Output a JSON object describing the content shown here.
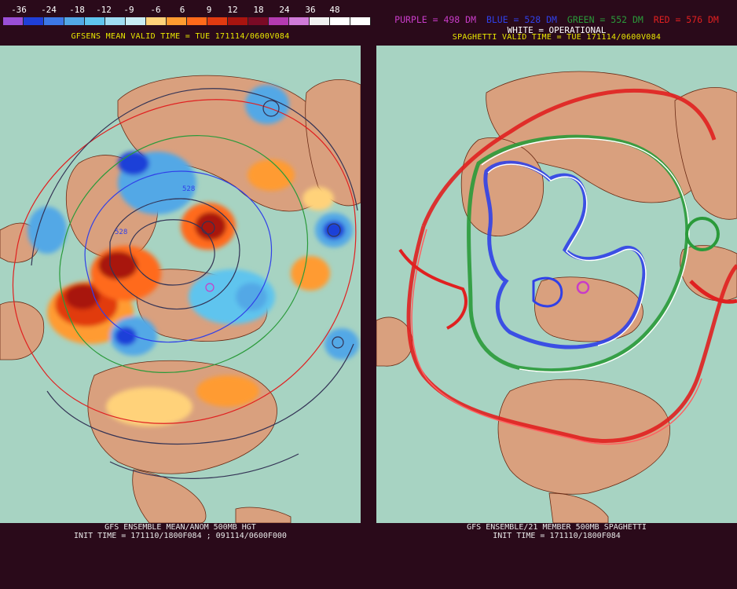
{
  "colorbar": {
    "labels": [
      "-36",
      "-24",
      "-18",
      "-12",
      "-9",
      "-6",
      "6",
      "9",
      "12",
      "18",
      "24",
      "36",
      "48"
    ],
    "colors": [
      "#9a4fd6",
      "#1f3fd8",
      "#3d78e6",
      "#52a8e6",
      "#5fc4ee",
      "#9fdcf2",
      "#c8ecf4",
      "#ffd27a",
      "#ff9b30",
      "#ff6a1a",
      "#e13a10",
      "#a8140f",
      "#7a0a25",
      "#b33bb0",
      "#d07bd8",
      "#f0f0f0",
      "#ffffff",
      "#ffffff"
    ]
  },
  "left_panel": {
    "title": "GFSENS MEAN VALID TIME = TUE 171114/0600V084",
    "footer_line1": "GFS ENSEMBLE MEAN/ANOM 500MB HGT",
    "footer_line2": "INIT TIME = 171110/1800F084 ; 091114/0600F000"
  },
  "right_panel": {
    "legend": [
      {
        "text": "PURPLE = 498 DM",
        "color": "#c83cc8"
      },
      {
        "text": "BLUE = 528 DM",
        "color": "#3040e8"
      },
      {
        "text": "GREEN = 552 DM",
        "color": "#2a9a3a"
      },
      {
        "text": "RED = 576 DM",
        "color": "#e02020"
      }
    ],
    "operational_label": "WHITE = OPERATIONAL",
    "title": "SPAGHETTI VALID TIME = TUE 171114/0600V084",
    "footer_line1": "GFS ENSEMBLE/21 MEMBER 500MB SPAGHETTI",
    "footer_line2": "INIT TIME = 171110/1800F084"
  },
  "contour_labels": [
    "528",
    "528"
  ],
  "colors": {
    "ocean": "#a7d3c2",
    "land": "#d9a07e",
    "border": "#6a2a14",
    "background": "#2a0a1a"
  }
}
